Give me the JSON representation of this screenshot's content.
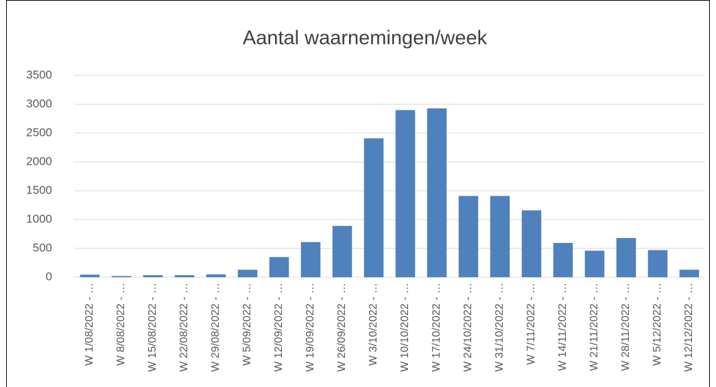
{
  "chart_data": {
    "type": "bar",
    "title": "Aantal waarnemingen/week",
    "categories": [
      "W 1/08/2022 - …",
      "W 8/08/2022 - …",
      "W 15/08/2022 - …",
      "W 22/08/2022 - …",
      "W 29/08/2022 - …",
      "W 5/09/2022 - …",
      "W 12/09/2022 - …",
      "W 19/09/2022 - …",
      "W 26/09/2022 - …",
      "W 3/10/2022 - …",
      "W 10/10/2022 - …",
      "W 17/10/2022 - …",
      "W 24/10/2022 - …",
      "W 31/10/2022 - …",
      "W 7/11/2022 - …",
      "W 14/11/2022 - …",
      "W 21/11/2022 - …",
      "W 28/11/2022 - …",
      "W 5/12/2022 - …",
      "W 12/12/2022 - …"
    ],
    "values": [
      45,
      20,
      35,
      35,
      50,
      130,
      350,
      610,
      890,
      2410,
      2900,
      2930,
      1410,
      1410,
      1160,
      595,
      460,
      680,
      470,
      130
    ],
    "color": "#4f81bd",
    "ylim": [
      0,
      3500
    ],
    "yticks": [
      0,
      500,
      1000,
      1500,
      2000,
      2500,
      3000,
      3500
    ],
    "grid": true
  }
}
